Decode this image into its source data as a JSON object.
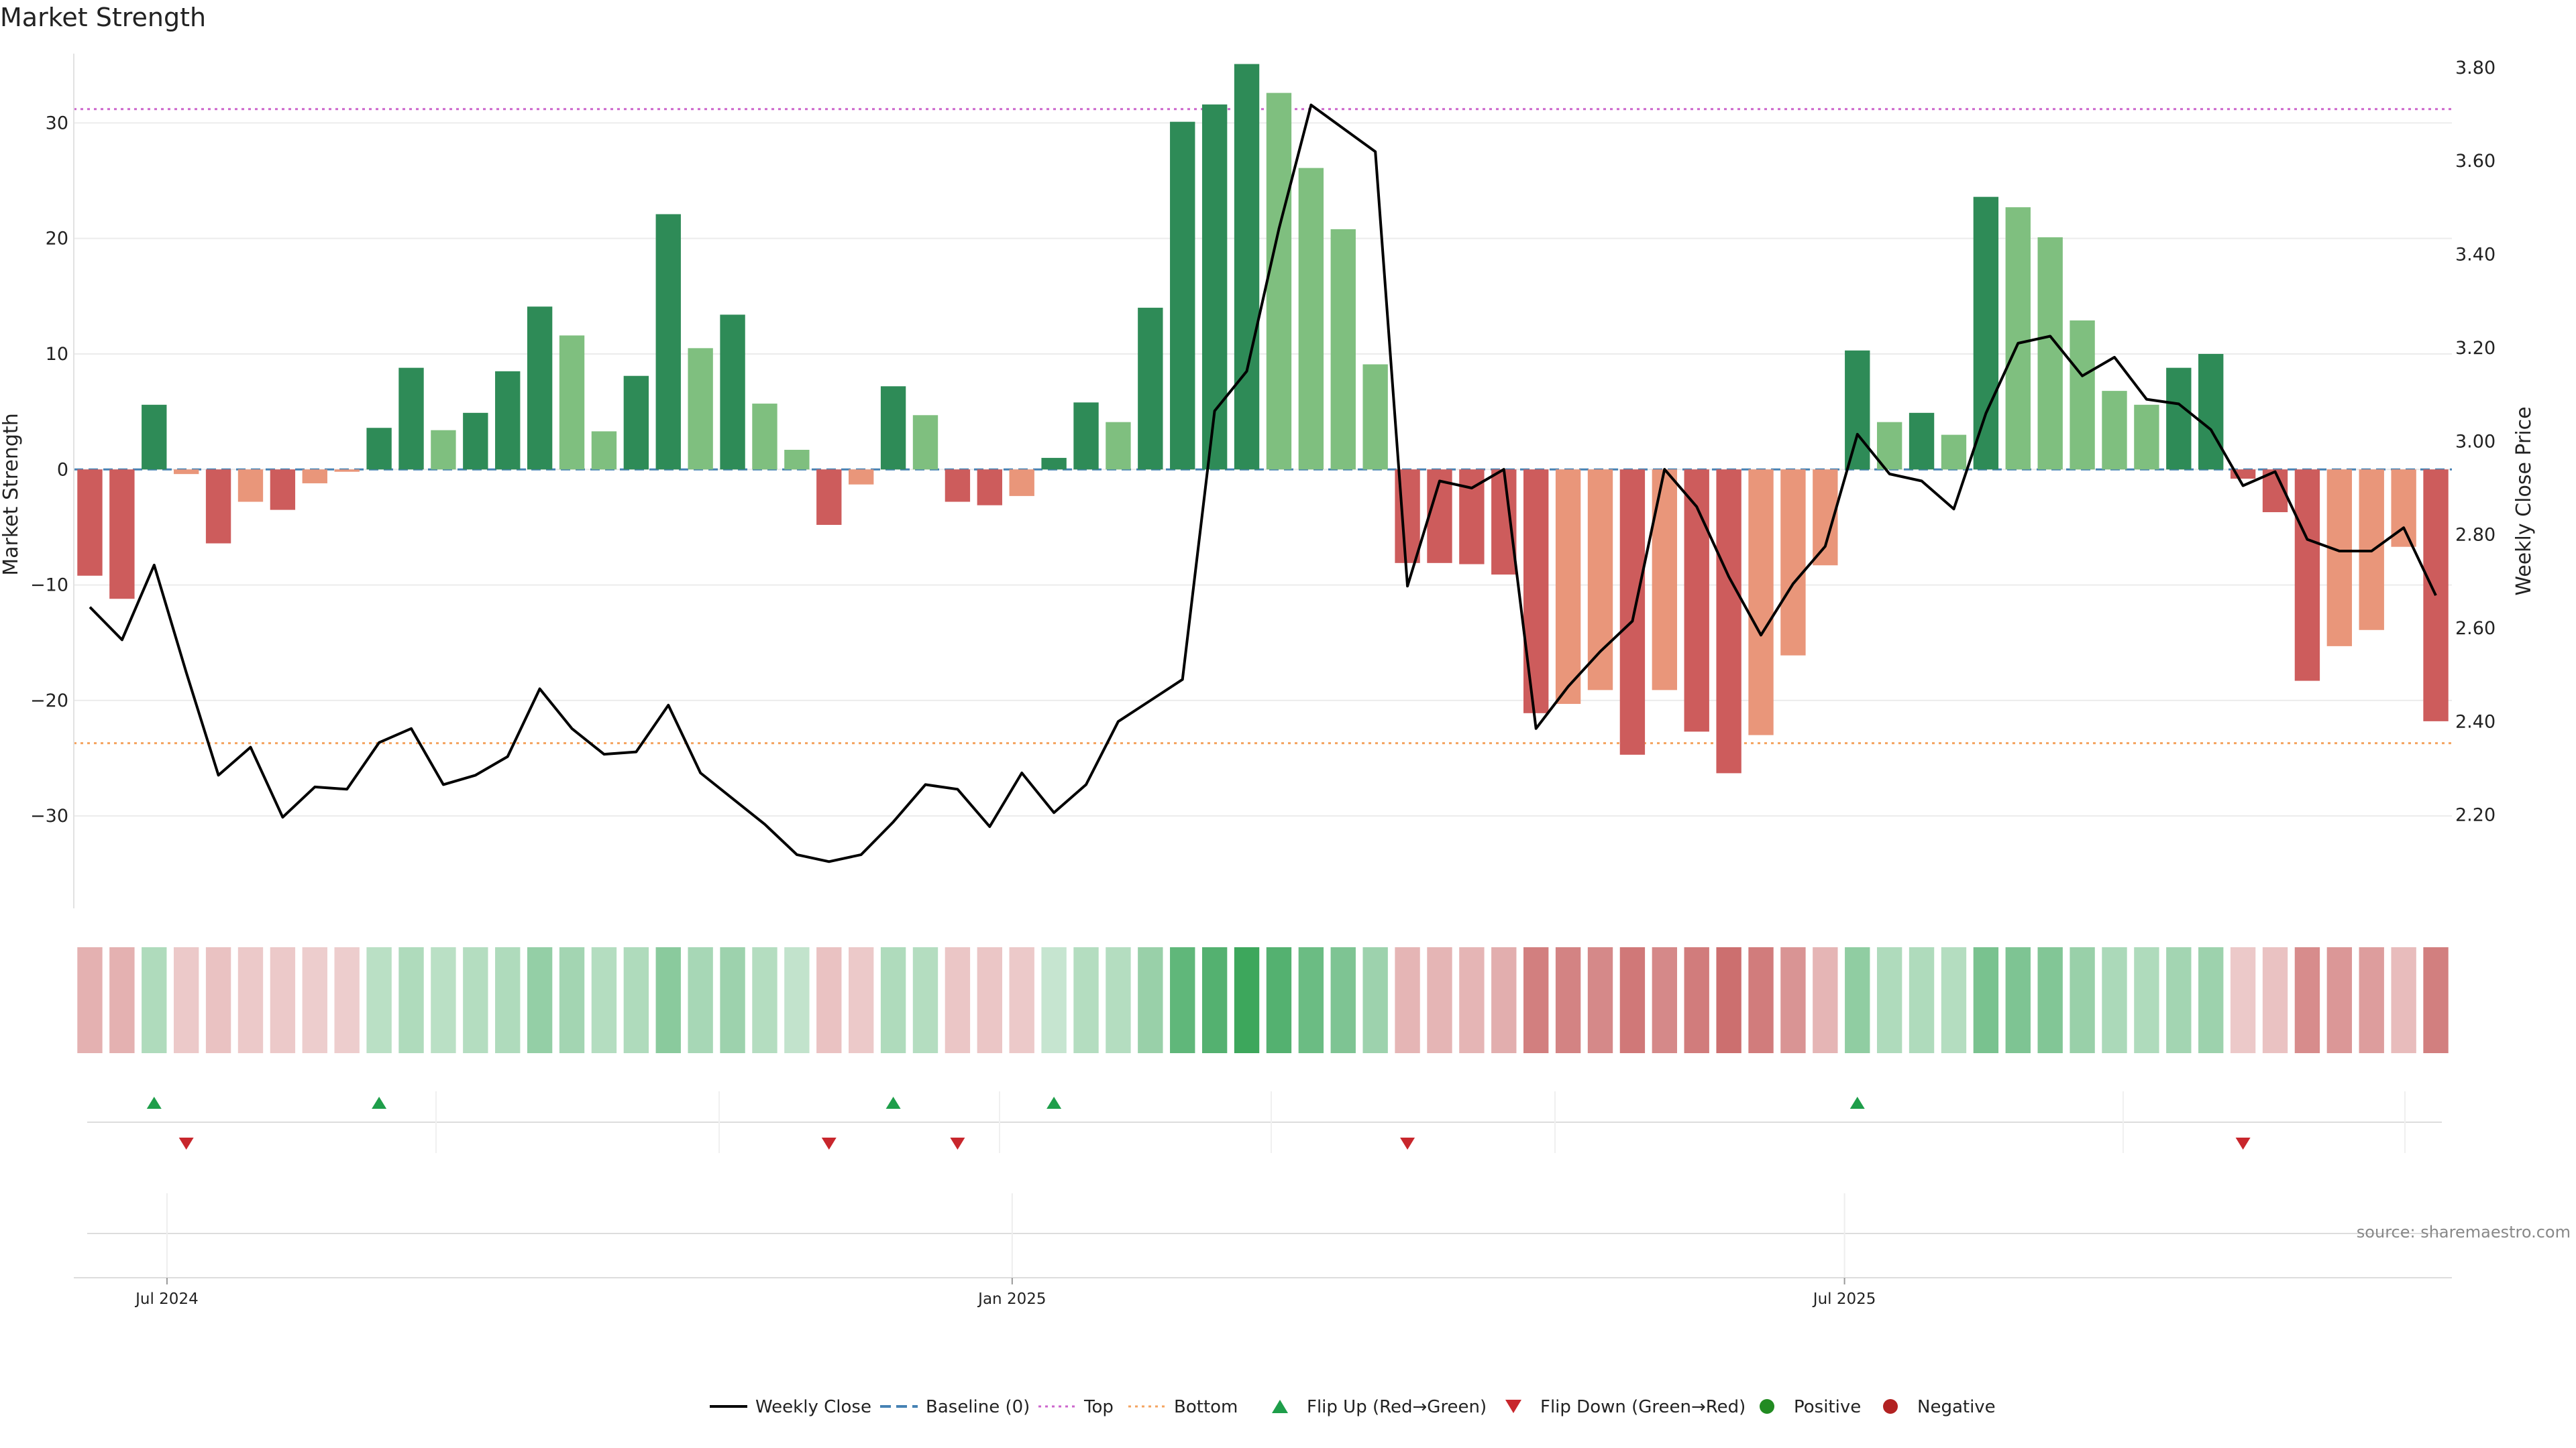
{
  "title": "Market Strength",
  "source": "source: sharemaestro.com",
  "colors": {
    "dark_green": "#2e8b57",
    "light_green": "#7fbf7f",
    "dark_red": "#cd5c5c",
    "light_red": "#e9967a",
    "top_line": "#cc66cc",
    "bottom_line": "#f4a460",
    "baseline": "#4682b4",
    "price_line": "#000000",
    "flip_up": "#1e9e4a",
    "flip_down": "#c8262c",
    "positive": "#228b22",
    "negative": "#b22222"
  },
  "chart_data": {
    "type": "bar",
    "title": "Market Strength",
    "ylabel": "Market Strength",
    "y2label": "Weekly Close Price",
    "ylim": [
      -38,
      36
    ],
    "y2lim": [
      2.0,
      3.83
    ],
    "yticks": [
      30,
      20,
      10,
      0,
      -10,
      -20,
      -30
    ],
    "ytick_labels": [
      "30",
      "20",
      "10",
      "0",
      "−10",
      "−20",
      "−30"
    ],
    "y2ticks": [
      3.8,
      3.6,
      3.4,
      3.2,
      3.0,
      2.8,
      2.6,
      2.4,
      2.2
    ],
    "y2tick_labels": [
      "3.80",
      "3.60",
      "3.40",
      "3.20",
      "3.00",
      "2.80",
      "2.60",
      "2.40",
      "2.20"
    ],
    "x_tick_labels": [
      {
        "index": 2.4,
        "label": "Jul 2024"
      },
      {
        "index": 28.7,
        "label": "Jan 2025"
      },
      {
        "index": 54.6,
        "label": "Jul 2025"
      }
    ],
    "reference_lines": {
      "top": 31.2,
      "bottom": -23.7,
      "baseline": 0
    },
    "strength": [
      -9.2,
      -11.2,
      5.6,
      -0.4,
      -6.4,
      -2.8,
      -3.5,
      -1.2,
      -0.2,
      3.6,
      8.8,
      3.4,
      4.9,
      8.5,
      14.1,
      11.6,
      3.3,
      8.1,
      22.1,
      10.5,
      13.4,
      5.7,
      1.7,
      -4.8,
      -1.3,
      7.2,
      4.7,
      -2.8,
      -3.1,
      -2.3,
      1.0,
      5.8,
      4.1,
      14.0,
      30.1,
      31.6,
      35.1,
      32.6,
      26.1,
      20.8,
      9.1,
      -8.1,
      -8.1,
      -8.2,
      -9.1,
      -21.1,
      -20.3,
      -19.1,
      -24.7,
      -19.1,
      -22.7,
      -26.3,
      -23.0,
      -16.1,
      -8.3,
      10.3,
      4.1,
      4.9,
      3.0,
      23.6,
      22.7,
      20.1,
      12.9,
      6.8,
      5.6,
      8.8,
      10.0,
      -0.8,
      -3.7,
      -18.3,
      -15.3,
      -13.9,
      -6.7,
      -21.8
    ],
    "bar_shade": [
      "d",
      "d",
      "d",
      "l",
      "d",
      "l",
      "d",
      "l",
      "l",
      "d",
      "d",
      "l",
      "d",
      "d",
      "d",
      "l",
      "l",
      "d",
      "d",
      "l",
      "d",
      "l",
      "l",
      "d",
      "l",
      "d",
      "l",
      "d",
      "d",
      "l",
      "d",
      "d",
      "l",
      "d",
      "d",
      "d",
      "d",
      "l",
      "l",
      "l",
      "l",
      "d",
      "d",
      "d",
      "d",
      "d",
      "l",
      "l",
      "d",
      "l",
      "d",
      "d",
      "l",
      "l",
      "l",
      "d",
      "l",
      "d",
      "l",
      "d",
      "l",
      "l",
      "l",
      "l",
      "l",
      "d",
      "d",
      "d",
      "d",
      "d",
      "l",
      "l",
      "l",
      "d"
    ],
    "weekly_close": [
      2.645,
      2.575,
      2.735,
      2.505,
      2.285,
      2.345,
      2.195,
      2.26,
      2.255,
      2.355,
      2.385,
      2.265,
      2.285,
      2.325,
      2.47,
      2.385,
      2.33,
      2.335,
      2.435,
      2.29,
      2.235,
      2.18,
      2.115,
      2.1,
      2.115,
      2.185,
      2.265,
      2.255,
      2.175,
      2.29,
      2.205,
      2.265,
      2.4,
      2.445,
      2.49,
      3.065,
      3.15,
      3.455,
      3.72,
      3.67,
      3.62,
      2.69,
      2.915,
      2.9,
      2.94,
      2.385,
      2.475,
      2.55,
      2.615,
      2.94,
      2.86,
      2.71,
      2.585,
      2.695,
      2.775,
      3.015,
      2.93,
      2.915,
      2.855,
      3.06,
      3.21,
      3.225,
      3.14,
      3.18,
      3.09,
      3.08,
      3.025,
      2.905,
      2.935,
      2.79,
      2.765,
      2.765,
      2.815,
      2.67
    ],
    "heat_strip": [
      -10,
      -10,
      8,
      -4,
      -6,
      -4,
      -4,
      -3,
      -3,
      6,
      8,
      6,
      7,
      8,
      14,
      11,
      7,
      8,
      16,
      10,
      12,
      7,
      4,
      -6,
      -4,
      8,
      7,
      -5,
      -5,
      -4,
      3,
      7,
      7,
      13,
      25,
      28,
      33,
      28,
      23,
      19,
      12,
      -9,
      -9,
      -9,
      -11,
      -22,
      -21,
      -20,
      -24,
      -20,
      -23,
      -26,
      -23,
      -17,
      -9,
      15,
      8,
      8,
      7,
      20,
      19,
      18,
      13,
      9,
      8,
      11,
      12,
      -4,
      -6,
      -19,
      -16,
      -15,
      -7,
      -22
    ],
    "flip_up_indices": [
      2,
      9,
      25,
      30,
      55
    ],
    "flip_down_indices": [
      3,
      23,
      27,
      41,
      67
    ],
    "legend": [
      {
        "label": "Weekly Close",
        "marker": "line"
      },
      {
        "label": "Baseline (0)",
        "marker": "dash"
      },
      {
        "label": "Top",
        "marker": "dot"
      },
      {
        "label": "Bottom",
        "marker": "dot"
      },
      {
        "label": "Flip Up (Red→Green)",
        "marker": "triangle-up"
      },
      {
        "label": "Flip Down (Green→Red)",
        "marker": "triangle-down"
      },
      {
        "label": "Positive",
        "marker": "circle"
      },
      {
        "label": "Negative",
        "marker": "circle"
      }
    ]
  }
}
